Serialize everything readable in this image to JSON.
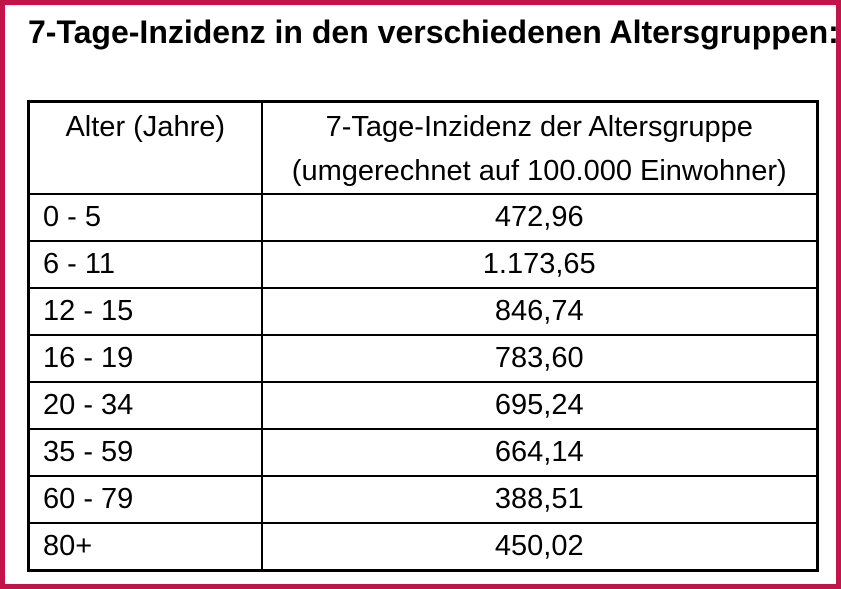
{
  "frame": {
    "border_color": "#c2134b",
    "background_color": "#ffffff",
    "text_color": "#000000",
    "table_border_color": "#000000"
  },
  "title": "7-Tage-Inzidenz in den verschiedenen Altersgruppen:",
  "table": {
    "header": {
      "age": "Alter (Jahre)",
      "value_line1": "7-Tage-Inzidenz der Altersgruppe",
      "value_line2": "(umgerechnet auf 100.000 Einwohner)"
    },
    "rows": [
      {
        "age": "0 - 5",
        "value": "472,96"
      },
      {
        "age": "6 - 11",
        "value": "1.173,65"
      },
      {
        "age": "12 - 15",
        "value": "846,74"
      },
      {
        "age": "16 - 19",
        "value": "783,60"
      },
      {
        "age": "20 - 34",
        "value": "695,24"
      },
      {
        "age": "35 - 59",
        "value": "664,14"
      },
      {
        "age": "60 - 79",
        "value": "388,51"
      },
      {
        "age": "80+",
        "value": "450,02"
      }
    ]
  },
  "chart_data": {
    "type": "table",
    "title": "7-Tage-Inzidenz in den verschiedenen Altersgruppen:",
    "columns": [
      "Alter (Jahre)",
      "7-Tage-Inzidenz der Altersgruppe (umgerechnet auf 100.000 Einwohner)"
    ],
    "categories": [
      "0 - 5",
      "6 - 11",
      "12 - 15",
      "16 - 19",
      "20 - 34",
      "35 - 59",
      "60 - 79",
      "80+"
    ],
    "values": [
      472.96,
      1173.65,
      846.74,
      783.6,
      695.24,
      664.14,
      388.51,
      450.02
    ],
    "value_labels": [
      "472,96",
      "1.173,65",
      "846,74",
      "783,60",
      "695,24",
      "664,14",
      "388,51",
      "450,02"
    ],
    "legend_position": "none",
    "grid": "table-borders"
  }
}
